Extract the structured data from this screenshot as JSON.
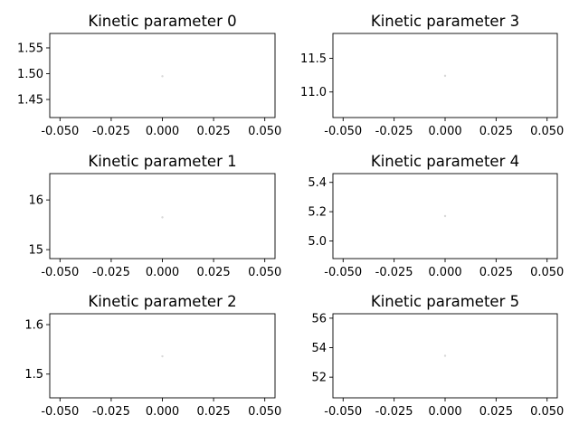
{
  "chart_data": [
    {
      "type": "scatter",
      "title": "Kinetic parameter 0",
      "x": [
        0.0
      ],
      "y": [
        1.495
      ],
      "xlim": [
        -0.055,
        0.055
      ],
      "ylim": [
        1.415,
        1.578
      ],
      "xticks": [
        "-0.050",
        "-0.025",
        "0.000",
        "0.025",
        "0.050"
      ],
      "xtick_values": [
        -0.05,
        -0.025,
        0.0,
        0.025,
        0.05
      ],
      "yticks": [
        "1.45",
        "1.50",
        "1.55"
      ],
      "ytick_values": [
        1.45,
        1.5,
        1.55
      ],
      "grid": false,
      "xlabel": "",
      "ylabel": ""
    },
    {
      "type": "scatter",
      "title": "Kinetic parameter 3",
      "x": [
        0.0
      ],
      "y": [
        11.24
      ],
      "xlim": [
        -0.055,
        0.055
      ],
      "ylim": [
        10.62,
        11.87
      ],
      "xticks": [
        "-0.050",
        "-0.025",
        "0.000",
        "0.025",
        "0.050"
      ],
      "xtick_values": [
        -0.05,
        -0.025,
        0.0,
        0.025,
        0.05
      ],
      "yticks": [
        "11.0",
        "11.5"
      ],
      "ytick_values": [
        11.0,
        11.5
      ],
      "grid": false,
      "xlabel": "",
      "ylabel": ""
    },
    {
      "type": "scatter",
      "title": "Kinetic parameter 1",
      "x": [
        0.0
      ],
      "y": [
        15.65
      ],
      "xlim": [
        -0.055,
        0.055
      ],
      "ylim": [
        14.82,
        16.53
      ],
      "xticks": [
        "-0.050",
        "-0.025",
        "0.000",
        "0.025",
        "0.050"
      ],
      "xtick_values": [
        -0.05,
        -0.025,
        0.0,
        0.025,
        0.05
      ],
      "yticks": [
        "15",
        "16"
      ],
      "ytick_values": [
        15,
        16
      ],
      "grid": false,
      "xlabel": "",
      "ylabel": ""
    },
    {
      "type": "scatter",
      "title": "Kinetic parameter 4",
      "x": [
        0.0
      ],
      "y": [
        5.17
      ],
      "xlim": [
        -0.055,
        0.055
      ],
      "ylim": [
        4.88,
        5.46
      ],
      "xticks": [
        "-0.050",
        "-0.025",
        "0.000",
        "0.025",
        "0.050"
      ],
      "xtick_values": [
        -0.05,
        -0.025,
        0.0,
        0.025,
        0.05
      ],
      "yticks": [
        "5.0",
        "5.2",
        "5.4"
      ],
      "ytick_values": [
        5.0,
        5.2,
        5.4
      ],
      "grid": false,
      "xlabel": "",
      "ylabel": ""
    },
    {
      "type": "scatter",
      "title": "Kinetic parameter 2",
      "x": [
        0.0
      ],
      "y": [
        1.536
      ],
      "xlim": [
        -0.055,
        0.055
      ],
      "ylim": [
        1.452,
        1.622
      ],
      "xticks": [
        "-0.050",
        "-0.025",
        "0.000",
        "0.025",
        "0.050"
      ],
      "xtick_values": [
        -0.05,
        -0.025,
        0.0,
        0.025,
        0.05
      ],
      "yticks": [
        "1.5",
        "1.6"
      ],
      "ytick_values": [
        1.5,
        1.6
      ],
      "grid": false,
      "xlabel": "",
      "ylabel": ""
    },
    {
      "type": "scatter",
      "title": "Kinetic parameter 5",
      "x": [
        0.0
      ],
      "y": [
        53.45
      ],
      "xlim": [
        -0.055,
        0.055
      ],
      "ylim": [
        50.6,
        56.3
      ],
      "xticks": [
        "-0.050",
        "-0.025",
        "0.000",
        "0.025",
        "0.050"
      ],
      "xtick_values": [
        -0.05,
        -0.025,
        0.0,
        0.025,
        0.05
      ],
      "yticks": [
        "52",
        "54",
        "56"
      ],
      "ytick_values": [
        52,
        54,
        56
      ],
      "grid": false,
      "xlabel": "",
      "ylabel": ""
    }
  ]
}
